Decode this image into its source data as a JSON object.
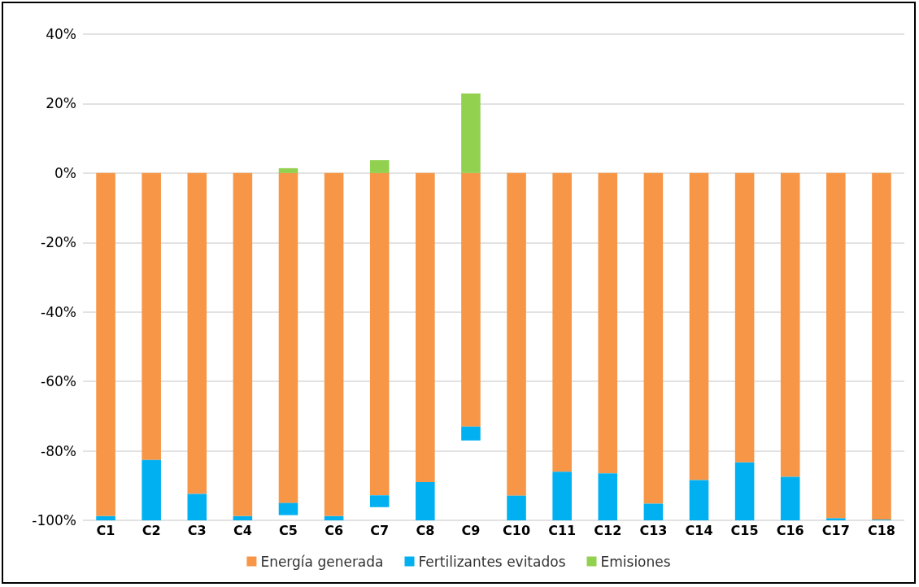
{
  "chart_data": {
    "type": "bar",
    "stacked": true,
    "categories": [
      "C1",
      "C2",
      "C3",
      "C4",
      "C5",
      "C6",
      "C7",
      "C8",
      "C9",
      "C10",
      "C11",
      "C12",
      "C13",
      "C14",
      "C15",
      "C16",
      "C17",
      "C18"
    ],
    "series": [
      {
        "name": "Energía generada",
        "color": "#f79646",
        "values": [
          -98.8,
          -82.6,
          -92.4,
          -98.8,
          -95,
          -98.8,
          -92.8,
          -89,
          -73,
          -92.9,
          -86,
          -86.5,
          -95.2,
          -88.4,
          -83.3,
          -87.5,
          -99.4,
          -99.8
        ]
      },
      {
        "name": "Fertilizantes evitados",
        "color": "#00b0f0",
        "values": [
          -1.2,
          -17.4,
          -7.6,
          -1.2,
          -3.5,
          -1.2,
          -3.4,
          -11,
          -4,
          -7.1,
          -14,
          -13.5,
          -4.8,
          -11.6,
          -16.7,
          -12.5,
          -0.6,
          -0.2
        ]
      },
      {
        "name": "Emisiones",
        "color": "#92d050",
        "values": [
          null,
          null,
          null,
          null,
          1.4,
          null,
          3.7,
          null,
          22.9,
          null,
          null,
          null,
          null,
          null,
          null,
          null,
          null,
          null
        ]
      }
    ],
    "ylim": [
      -100,
      40
    ],
    "yticks": [
      {
        "value": -100,
        "label": "-100%"
      },
      {
        "value": -80,
        "label": "-80%"
      },
      {
        "value": -60,
        "label": "-60%"
      },
      {
        "value": -40,
        "label": "-40%"
      },
      {
        "value": -20,
        "label": "-20%"
      },
      {
        "value": 0,
        "label": "0%"
      },
      {
        "value": 20,
        "label": "20%"
      },
      {
        "value": 40,
        "label": "40%"
      }
    ],
    "grid": "y",
    "legend": "bottom"
  }
}
